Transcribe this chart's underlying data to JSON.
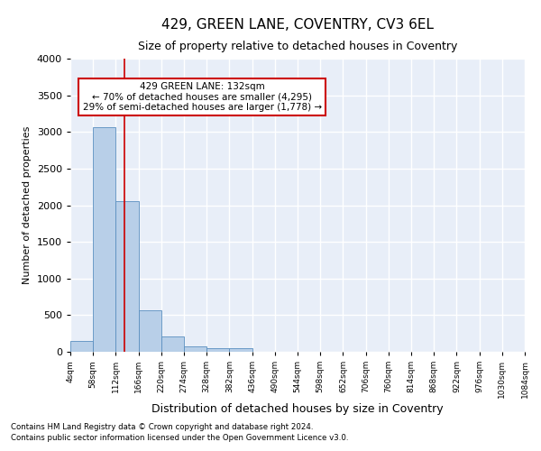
{
  "title": "429, GREEN LANE, COVENTRY, CV3 6EL",
  "subtitle": "Size of property relative to detached houses in Coventry",
  "xlabel": "Distribution of detached houses by size in Coventry",
  "ylabel": "Number of detached properties",
  "footnote1": "Contains HM Land Registry data © Crown copyright and database right 2024.",
  "footnote2": "Contains public sector information licensed under the Open Government Licence v3.0.",
  "annotation_line1": "429 GREEN LANE: 132sqm",
  "annotation_line2": "← 70% of detached houses are smaller (4,295)",
  "annotation_line3": "29% of semi-detached houses are larger (1,778) →",
  "bar_edges": [
    4,
    58,
    112,
    166,
    220,
    274,
    328,
    382,
    436,
    490,
    544,
    598,
    652,
    706,
    760,
    814,
    868,
    922,
    976,
    1030,
    1084
  ],
  "bar_heights": [
    150,
    3060,
    2060,
    570,
    210,
    80,
    55,
    50,
    0,
    0,
    0,
    0,
    0,
    0,
    0,
    0,
    0,
    0,
    0,
    0
  ],
  "bar_color": "#b8cfe8",
  "bar_edge_color": "#5a8fc0",
  "red_line_x": 132,
  "ylim": [
    0,
    4000
  ],
  "yticks": [
    0,
    500,
    1000,
    1500,
    2000,
    2500,
    3000,
    3500,
    4000
  ],
  "background_color": "#ffffff",
  "plot_bg_color": "#e8eef8",
  "grid_color": "#ffffff",
  "annotation_box_color": "#ffffff",
  "annotation_box_edge": "#cc0000",
  "title_fontsize": 11,
  "subtitle_fontsize": 9,
  "ylabel_fontsize": 8,
  "xlabel_fontsize": 9
}
